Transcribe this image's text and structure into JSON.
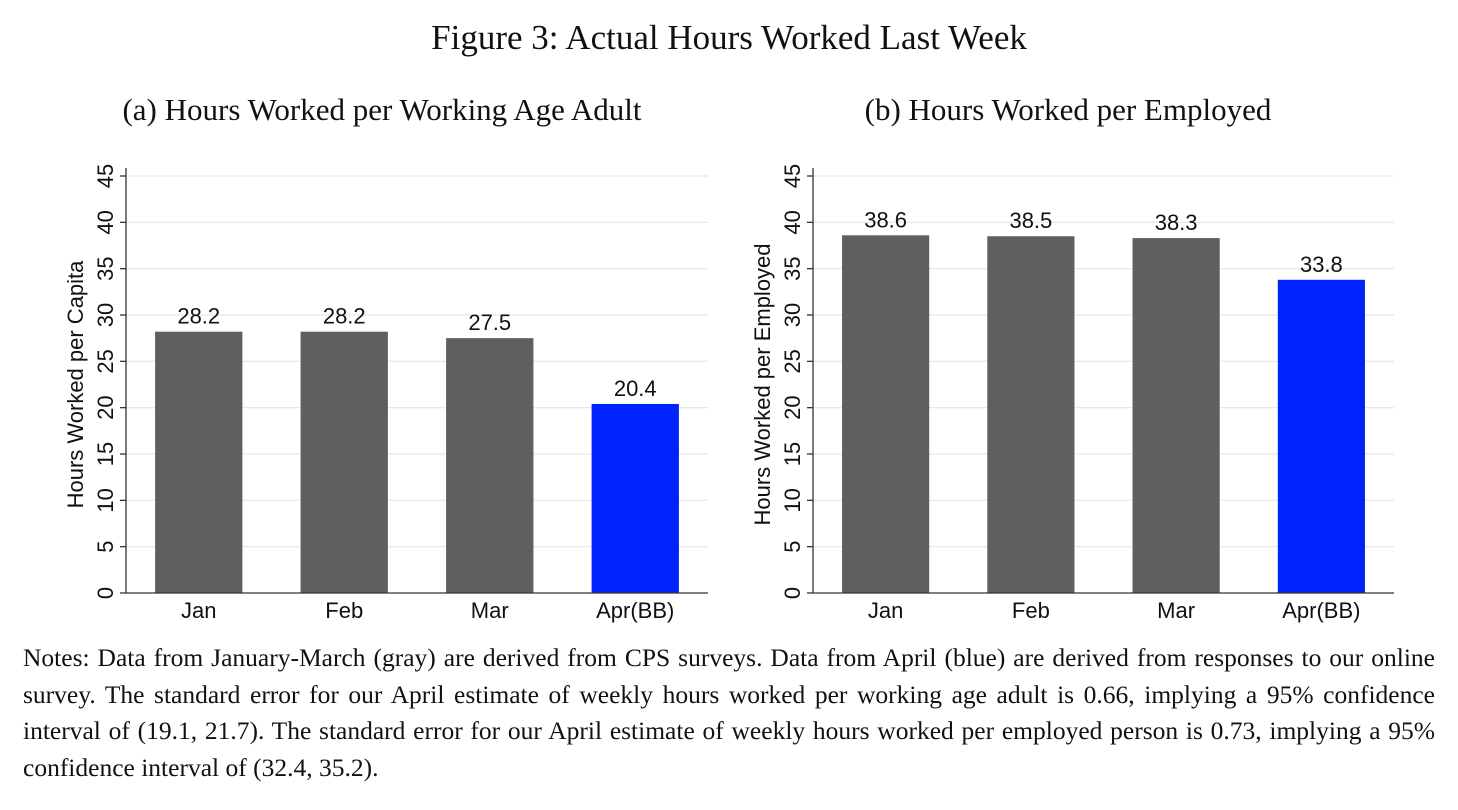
{
  "figure_title": "Figure 3: Actual Hours Worked Last Week",
  "chart_data": [
    {
      "type": "bar",
      "title": "(a) Hours Worked per Working Age Adult",
      "xlabel": "",
      "ylabel": "Hours Worked per Capita",
      "categories": [
        "Jan",
        "Feb",
        "Mar",
        "Apr(BB)"
      ],
      "values": [
        28.2,
        28.2,
        27.5,
        20.4
      ],
      "value_labels": [
        "28.2",
        "28.2",
        "27.5",
        "20.4"
      ],
      "bar_colors": [
        "#5f5f5f",
        "#5f5f5f",
        "#5f5f5f",
        "#0022ff"
      ],
      "ylim": [
        0,
        45
      ],
      "yticks": [
        0,
        5,
        10,
        15,
        20,
        25,
        30,
        35,
        40,
        45
      ],
      "ytick_labels": [
        "0",
        "5",
        "10",
        "15",
        "20",
        "25",
        "30",
        "35",
        "40",
        "45"
      ],
      "grid": true
    },
    {
      "type": "bar",
      "title": "(b) Hours Worked per Employed",
      "xlabel": "",
      "ylabel": "Hours Worked per Employed",
      "categories": [
        "Jan",
        "Feb",
        "Mar",
        "Apr(BB)"
      ],
      "values": [
        38.6,
        38.5,
        38.3,
        33.8
      ],
      "value_labels": [
        "38.6",
        "38.5",
        "38.3",
        "33.8"
      ],
      "bar_colors": [
        "#5f5f5f",
        "#5f5f5f",
        "#5f5f5f",
        "#0022ff"
      ],
      "ylim": [
        0,
        45
      ],
      "yticks": [
        0,
        5,
        10,
        15,
        20,
        25,
        30,
        35,
        40,
        45
      ],
      "ytick_labels": [
        "0",
        "5",
        "10",
        "15",
        "20",
        "25",
        "30",
        "35",
        "40",
        "45"
      ],
      "grid": true
    }
  ],
  "notes": "Notes: Data from January-March (gray) are derived from CPS surveys. Data from April (blue) are derived from responses to our online survey. The standard error for our April estimate of weekly hours worked per working age adult is 0.66, implying a 95% confidence interval of (19.1, 21.7). The standard error for our April estimate of weekly hours worked per employed person is 0.73, implying a 95% confidence interval of (32.4, 35.2)."
}
